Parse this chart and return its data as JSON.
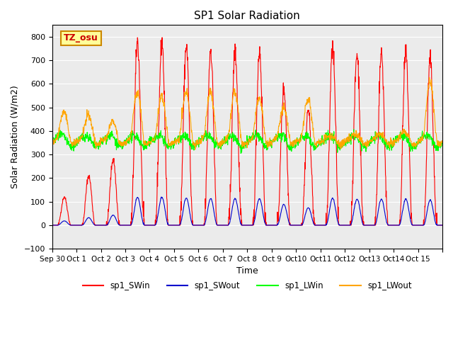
{
  "title": "SP1 Solar Radiation",
  "ylabel": "Solar Radiation (W/m2)",
  "xlabel": "Time",
  "ylim": [
    -100,
    850
  ],
  "yticks": [
    -100,
    0,
    100,
    200,
    300,
    400,
    500,
    600,
    700,
    800
  ],
  "xtick_labels": [
    "Sep 30",
    "Oct 1",
    "Oct 2",
    "Oct 3",
    "Oct 4",
    "Oct 5",
    "Oct 6",
    "Oct 7",
    "Oct 8",
    "Oct 9",
    "Oct10",
    "Oct11",
    "Oct12",
    "Oct13",
    "Oct14",
    "Oct 15",
    ""
  ],
  "colors": {
    "SWin": "#FF0000",
    "SWout": "#0000CC",
    "LWin": "#00FF00",
    "LWout": "#FFA500"
  },
  "legend_labels": [
    "sp1_SWin",
    "sp1_SWout",
    "sp1_LWin",
    "sp1_LWout"
  ],
  "annotation_text": "TZ_osu",
  "annotation_color": "#CC0000",
  "annotation_bg": "#FFFF99",
  "annotation_border": "#CC8800",
  "background_color": "#FFFFFF",
  "ax_facecolor": "#EBEBEB",
  "num_days": 16,
  "dt_hours": 0.25,
  "sw_peaks": [
    120,
    210,
    280,
    780,
    780,
    760,
    745,
    740,
    740,
    580,
    490,
    750,
    730,
    730,
    730,
    700
  ],
  "lw_out_peaks": [
    475,
    460,
    430,
    555,
    540,
    555,
    560,
    560,
    530,
    490,
    525,
    370,
    375,
    375,
    390,
    610
  ]
}
